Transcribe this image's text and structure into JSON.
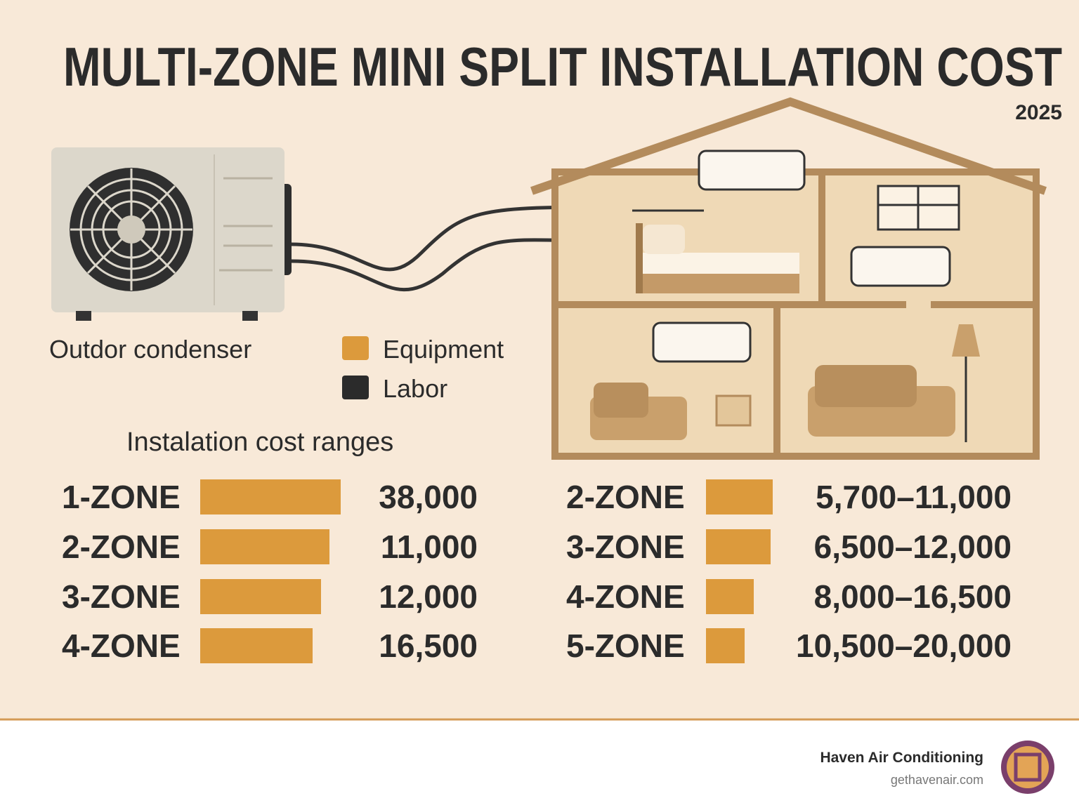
{
  "header": {
    "title": "MULTI-ZONE MINI SPLIT INSTALLATION COST",
    "year": "2025"
  },
  "illustration": {
    "condenser_label": "Outdor condenser"
  },
  "legend": [
    {
      "label": "Equipment"
    },
    {
      "label": "Labor"
    }
  ],
  "section_title": "Instalation cost ranges",
  "left_rows": [
    {
      "zone": "1-ZONE",
      "cost": "38,000"
    },
    {
      "zone": "2-ZONE",
      "cost": "11,000"
    },
    {
      "zone": "3-ZONE",
      "cost": "12,000"
    },
    {
      "zone": "4-ZONE",
      "cost": "16,500"
    }
  ],
  "right_rows": [
    {
      "zone": "2-ZONE",
      "cost": "5,700–11,000"
    },
    {
      "zone": "3-ZONE",
      "cost": "6,500–12,000"
    },
    {
      "zone": "4-ZONE",
      "cost": "8,000–16,500"
    },
    {
      "zone": "5-ZONE",
      "cost": "10,500–20,000"
    }
  ],
  "footer": {
    "company": "Haven Air Conditioning",
    "url": "gethavenair.com"
  }
}
